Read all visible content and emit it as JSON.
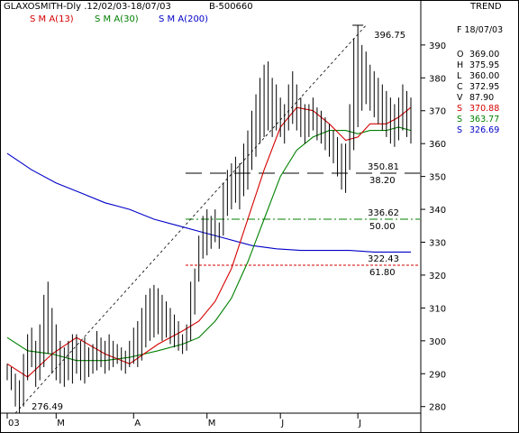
{
  "header": {
    "title": "GLAXOSMITH-Dly .12/02/03-18/07/03",
    "code": "B-500660",
    "trend_label": "TREND"
  },
  "legend": [
    {
      "label": "S M A(13)",
      "color": "#d40000"
    },
    {
      "label": "S M A(30)",
      "color": "#008000"
    },
    {
      "label": "S M A(200)",
      "color": "#0000c8"
    }
  ],
  "panel": {
    "date_label": "F 18/07/03",
    "rows": [
      {
        "key": "O",
        "value": "369.00",
        "color": "#000000"
      },
      {
        "key": "H",
        "value": "375.95",
        "color": "#000000"
      },
      {
        "key": "L",
        "value": "360.00",
        "color": "#000000"
      },
      {
        "key": "C",
        "value": "372.95",
        "color": "#000000"
      },
      {
        "key": "V",
        "value": "87.90",
        "color": "#000000"
      },
      {
        "key": "S",
        "value": "370.88",
        "color": "#d40000"
      },
      {
        "key": "S",
        "value": "363.77",
        "color": "#008000"
      },
      {
        "key": "S",
        "value": "326.69",
        "color": "#0000c8"
      }
    ]
  },
  "chart_data": {
    "type": "ohlc",
    "ylim": [
      278,
      396
    ],
    "y_ticks": [
      280,
      290,
      300,
      310,
      320,
      330,
      340,
      350,
      360,
      370,
      380,
      390
    ],
    "x_labels": [
      {
        "label": "03",
        "bar": 0
      },
      {
        "label": "M",
        "bar": 12
      },
      {
        "label": "A",
        "bar": 31
      },
      {
        "label": "M",
        "bar": 49
      },
      {
        "label": "J",
        "bar": 67
      },
      {
        "label": "J",
        "bar": 86
      }
    ],
    "highlow": [
      [
        288,
        293
      ],
      [
        285,
        292
      ],
      [
        280,
        290
      ],
      [
        278,
        288
      ],
      [
        280,
        296
      ],
      [
        288,
        302
      ],
      [
        292,
        304
      ],
      [
        286,
        300
      ],
      [
        288,
        305
      ],
      [
        292,
        314
      ],
      [
        296,
        318
      ],
      [
        290,
        310
      ],
      [
        288,
        305
      ],
      [
        287,
        300
      ],
      [
        286,
        298
      ],
      [
        288,
        300
      ],
      [
        287,
        302
      ],
      [
        290,
        302
      ],
      [
        288,
        300
      ],
      [
        287,
        301
      ],
      [
        289,
        298
      ],
      [
        290,
        299
      ],
      [
        291,
        303
      ],
      [
        292,
        301
      ],
      [
        290,
        300
      ],
      [
        291,
        302
      ],
      [
        292,
        300
      ],
      [
        293,
        299
      ],
      [
        291,
        298
      ],
      [
        290,
        297
      ],
      [
        292,
        300
      ],
      [
        293,
        304
      ],
      [
        292,
        306
      ],
      [
        294,
        310
      ],
      [
        298,
        314
      ],
      [
        300,
        316
      ],
      [
        301,
        317
      ],
      [
        302,
        316
      ],
      [
        300,
        314
      ],
      [
        301,
        312
      ],
      [
        299,
        310
      ],
      [
        298,
        308
      ],
      [
        297,
        306
      ],
      [
        296,
        302
      ],
      [
        297,
        305
      ],
      [
        300,
        318
      ],
      [
        308,
        322
      ],
      [
        318,
        332
      ],
      [
        325,
        338
      ],
      [
        326,
        340
      ],
      [
        328,
        338
      ],
      [
        330,
        340
      ],
      [
        328,
        336
      ],
      [
        332,
        348
      ],
      [
        338,
        352
      ],
      [
        340,
        354
      ],
      [
        342,
        356
      ],
      [
        340,
        354
      ],
      [
        344,
        360
      ],
      [
        346,
        364
      ],
      [
        352,
        370
      ],
      [
        356,
        375
      ],
      [
        360,
        380
      ],
      [
        362,
        384
      ],
      [
        364,
        385
      ],
      [
        362,
        380
      ],
      [
        364,
        378
      ],
      [
        362,
        374
      ],
      [
        360,
        372
      ],
      [
        364,
        378
      ],
      [
        366,
        382
      ],
      [
        364,
        378
      ],
      [
        362,
        374
      ],
      [
        360,
        372
      ],
      [
        362,
        372
      ],
      [
        364,
        374
      ],
      [
        361,
        371
      ],
      [
        360,
        370
      ],
      [
        358,
        368
      ],
      [
        356,
        366
      ],
      [
        354,
        364
      ],
      [
        350,
        362
      ],
      [
        346,
        360
      ],
      [
        345,
        360
      ],
      [
        352,
        372
      ],
      [
        358,
        392
      ],
      [
        365,
        396
      ],
      [
        370,
        390
      ],
      [
        372,
        388
      ],
      [
        370,
        384
      ],
      [
        368,
        382
      ],
      [
        366,
        380
      ],
      [
        364,
        378
      ],
      [
        362,
        376
      ],
      [
        360,
        374
      ],
      [
        359,
        372
      ],
      [
        361,
        374
      ],
      [
        364,
        378
      ],
      [
        362,
        376
      ],
      [
        360,
        374
      ]
    ],
    "sma13": [
      [
        0,
        293
      ],
      [
        5,
        289
      ],
      [
        11,
        296
      ],
      [
        17,
        301
      ],
      [
        24,
        296
      ],
      [
        30,
        293
      ],
      [
        37,
        299
      ],
      [
        43,
        303
      ],
      [
        47,
        306
      ],
      [
        51,
        312
      ],
      [
        55,
        322
      ],
      [
        59,
        337
      ],
      [
        63,
        352
      ],
      [
        67,
        365
      ],
      [
        71,
        371
      ],
      [
        75,
        370
      ],
      [
        79,
        366
      ],
      [
        83,
        361
      ],
      [
        86,
        362
      ],
      [
        89,
        366
      ],
      [
        93,
        366
      ],
      [
        96,
        368
      ],
      [
        99,
        371
      ]
    ],
    "sma30": [
      [
        0,
        301
      ],
      [
        5,
        297
      ],
      [
        11,
        296
      ],
      [
        17,
        294
      ],
      [
        24,
        294
      ],
      [
        30,
        295
      ],
      [
        37,
        297
      ],
      [
        43,
        299
      ],
      [
        47,
        301
      ],
      [
        51,
        306
      ],
      [
        55,
        313
      ],
      [
        59,
        324
      ],
      [
        63,
        337
      ],
      [
        67,
        350
      ],
      [
        71,
        358
      ],
      [
        75,
        362
      ],
      [
        79,
        364
      ],
      [
        83,
        364
      ],
      [
        86,
        363
      ],
      [
        89,
        364
      ],
      [
        93,
        364
      ],
      [
        96,
        365
      ],
      [
        99,
        364
      ]
    ],
    "sma200": [
      [
        0,
        357
      ],
      [
        6,
        352
      ],
      [
        12,
        348
      ],
      [
        18,
        345
      ],
      [
        24,
        342
      ],
      [
        30,
        340
      ],
      [
        36,
        337
      ],
      [
        42,
        335
      ],
      [
        48,
        333
      ],
      [
        54,
        331
      ],
      [
        60,
        329
      ],
      [
        66,
        328
      ],
      [
        72,
        327.5
      ],
      [
        78,
        327.5
      ],
      [
        84,
        327.5
      ],
      [
        90,
        327
      ],
      [
        99,
        327
      ]
    ],
    "trendline": {
      "from": [
        2,
        278
      ],
      "to": [
        88,
        396
      ]
    },
    "fib_levels": [
      {
        "price": 351,
        "value": "350.81",
        "pct": "38.20",
        "color": "#000000",
        "dash": "18,9"
      },
      {
        "price": 337,
        "value": "336.62",
        "pct": "50.00",
        "color": "#008000",
        "dash": "9,3,2,3"
      },
      {
        "price": 323,
        "value": "322.43",
        "pct": "61.80",
        "color": "#d40000",
        "dash": "3,2"
      }
    ],
    "annotations": [
      {
        "text": "396.75",
        "price": 396,
        "bar": 86
      },
      {
        "text": "276.49",
        "price": 278,
        "bar": 2
      }
    ]
  }
}
